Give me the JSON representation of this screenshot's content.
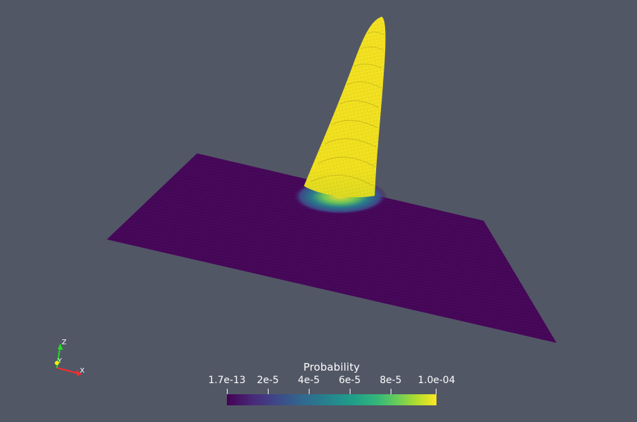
{
  "colorbar": {
    "title": "Probability",
    "ticks": [
      "1.7e-13",
      "2e-5",
      "4e-5",
      "6e-5",
      "8e-5",
      "1.0e-04"
    ],
    "colormap": "viridis"
  },
  "axes": {
    "x_label": "X",
    "y_label": "Y",
    "z_label": "Z",
    "x_color": "#ff2a2a",
    "y_color": "#f4f40a",
    "z_color": "#22dd22"
  },
  "colors": {
    "background": "#525766",
    "surface_low": "#440154",
    "surface_high": "#fde725"
  }
}
